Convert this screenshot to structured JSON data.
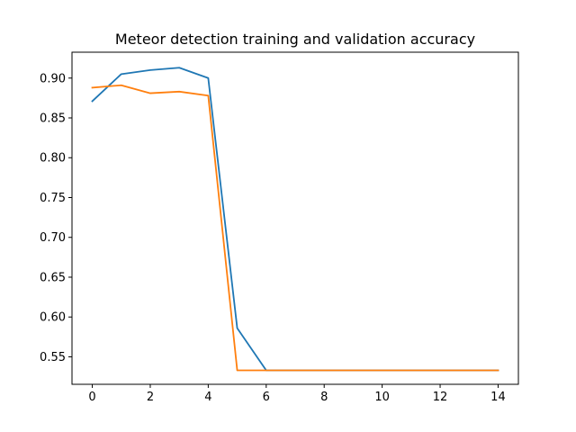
{
  "chart_data": {
    "type": "line",
    "title": "Meteor detection training and validation accuracy",
    "xlabel": "",
    "ylabel": "",
    "x": [
      0,
      1,
      2,
      3,
      4,
      5,
      6,
      7,
      8,
      9,
      10,
      11,
      12,
      13,
      14
    ],
    "xlim": [
      -0.7,
      14.7
    ],
    "ylim": [
      0.5155,
      0.9325
    ],
    "xticks": [
      0,
      2,
      4,
      6,
      8,
      10,
      12,
      14
    ],
    "yticks": [
      0.55,
      0.6,
      0.65,
      0.7,
      0.75,
      0.8,
      0.85,
      0.9
    ],
    "xtick_labels": [
      "0",
      "2",
      "4",
      "6",
      "8",
      "10",
      "12",
      "14"
    ],
    "ytick_labels": [
      "0.55",
      "0.60",
      "0.65",
      "0.70",
      "0.75",
      "0.80",
      "0.85",
      "0.90"
    ],
    "grid": false,
    "series": [
      {
        "color": "#1f77b4",
        "values": [
          0.871,
          0.905,
          0.91,
          0.913,
          0.9,
          0.586,
          0.533,
          0.533,
          0.533,
          0.533,
          0.533,
          0.533,
          0.533,
          0.533,
          0.533
        ]
      },
      {
        "color": "#ff7f0e",
        "values": [
          0.888,
          0.891,
          0.881,
          0.883,
          0.878,
          0.533,
          0.533,
          0.533,
          0.533,
          0.533,
          0.533,
          0.533,
          0.533,
          0.533,
          0.533
        ]
      }
    ]
  }
}
